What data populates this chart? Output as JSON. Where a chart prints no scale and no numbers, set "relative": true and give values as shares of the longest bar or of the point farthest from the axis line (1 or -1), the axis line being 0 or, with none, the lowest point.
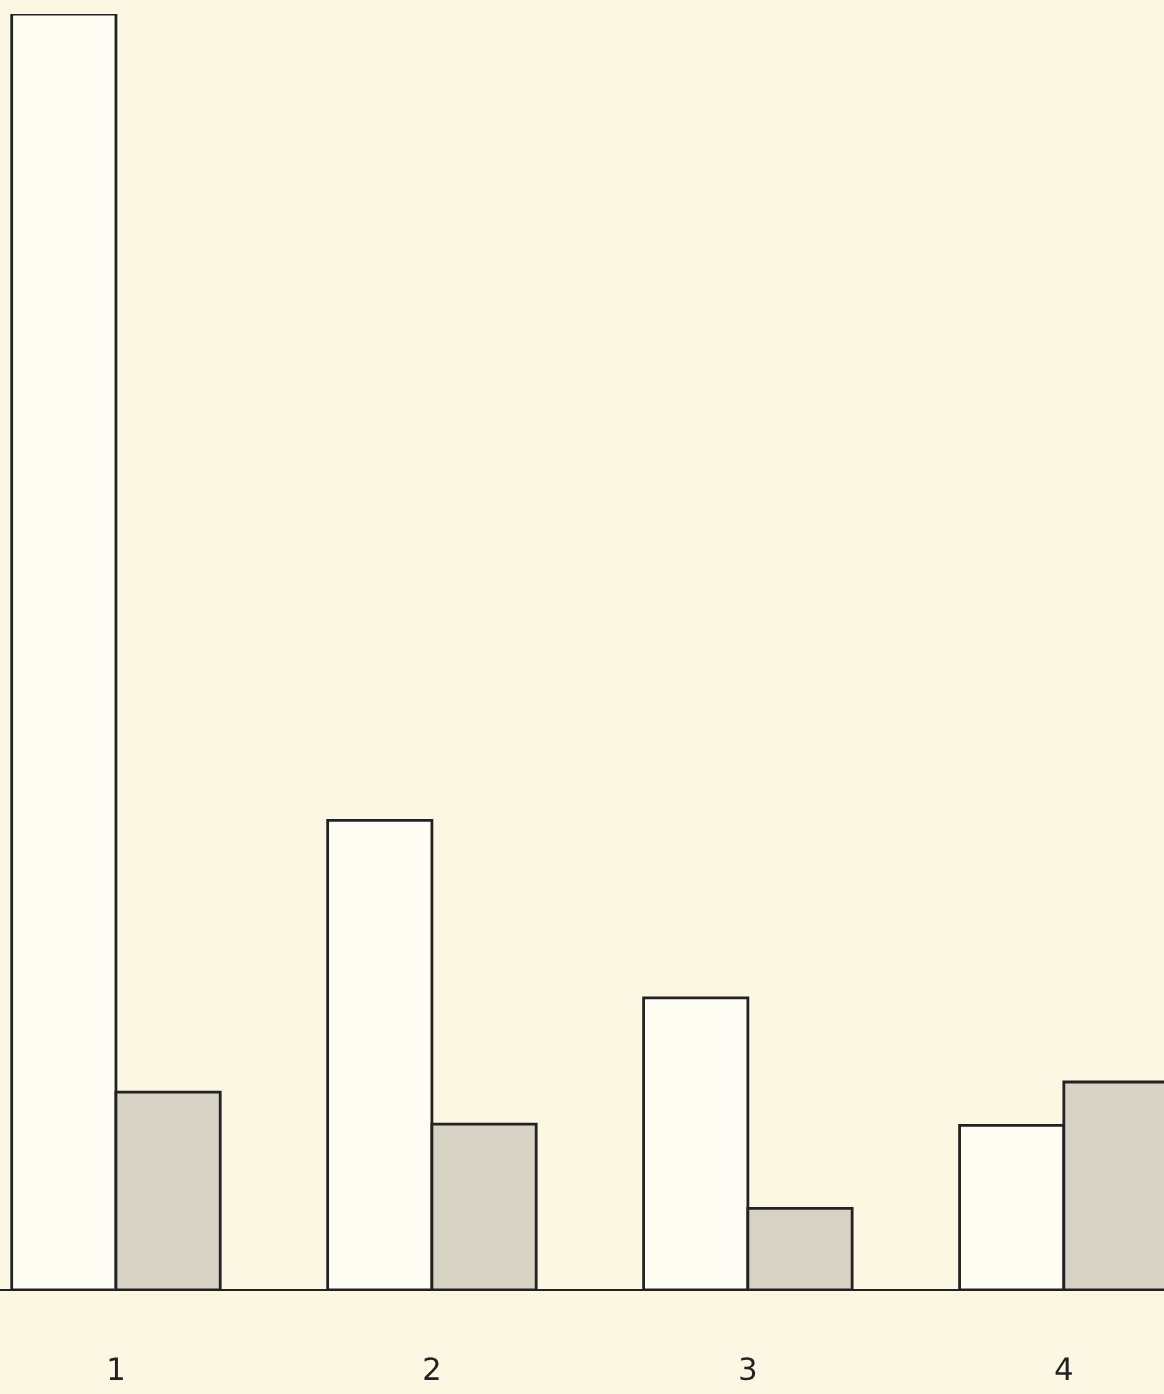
{
  "chart_data": {
    "type": "bar",
    "relative": true,
    "categories": [
      "1",
      "2",
      "3",
      "4"
    ],
    "series": [
      {
        "color": "#fefdf4",
        "values": [
          1,
          0.368,
          0.229,
          0.129
        ]
      },
      {
        "color": "#d6d2c4",
        "values": [
          0.155,
          0.13,
          0.064,
          0.163
        ]
      }
    ],
    "grid": false,
    "legend": false
  }
}
